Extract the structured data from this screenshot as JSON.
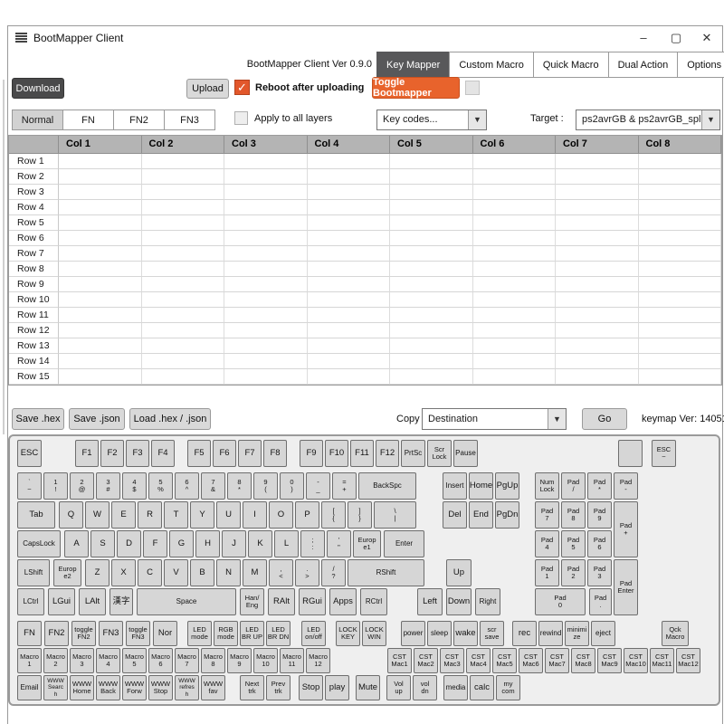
{
  "window": {
    "title": "BootMapper Client",
    "minimize": "–",
    "maximize": "▢",
    "close": "✕"
  },
  "header": {
    "version_text": "BootMapper Client Ver 0.9.0",
    "tabs": [
      {
        "label": "Key Mapper",
        "active": true
      },
      {
        "label": "Custom Macro",
        "active": false
      },
      {
        "label": "Quick Macro",
        "active": false
      },
      {
        "label": "Dual Action",
        "active": false
      },
      {
        "label": "Options",
        "active": false
      }
    ]
  },
  "toolbar": {
    "download": "Download",
    "upload": "Upload",
    "reboot_label": "Reboot after uploading",
    "reboot_checked": true,
    "check_glyph": "✓",
    "toggle_bootmapper": "Toggle Bootmapper"
  },
  "layers": {
    "tabs": [
      "Normal",
      "FN",
      "FN2",
      "FN3"
    ],
    "active": "Normal",
    "apply_all_label": "Apply to all layers",
    "apply_all_checked": false,
    "key_codes_value": "Key codes...",
    "target_label": "Target :",
    "target_value": "ps2avrGB & ps2avrGB_split",
    "dropdown_arrow": "▼"
  },
  "grid": {
    "columns": [
      "Col 1",
      "Col 2",
      "Col 3",
      "Col 4",
      "Col 5",
      "Col 6",
      "Col 7",
      "Col 8"
    ],
    "rows": [
      "Row 1",
      "Row 2",
      "Row 3",
      "Row 4",
      "Row 5",
      "Row 6",
      "Row 7",
      "Row 8",
      "Row 9",
      "Row 10",
      "Row 11",
      "Row 12",
      "Row 13",
      "Row 14",
      "Row 15"
    ]
  },
  "file_bar": {
    "save_hex": "Save .hex",
    "save_json": "Save .json",
    "load": "Load .hex / .json",
    "copy_label": "Copy :",
    "copy_value": "Destination",
    "go": "Go",
    "keymap_ver": "keymap Ver: 140513"
  },
  "colors": {
    "accent_orange": "#e8632c",
    "tab_active_bg": "#58585a",
    "button_dark_bg": "#4a4a4b",
    "key_bg": "#d6d6d6",
    "grid_header_bg": "#b4b4b4"
  },
  "keyboard": {
    "keys": [
      [
        "ESC",
        8,
        4,
        27,
        30
      ],
      [
        "F1",
        72,
        4,
        26,
        30
      ],
      [
        "F2",
        100,
        4,
        26,
        30
      ],
      [
        "F3",
        128,
        4,
        26,
        30
      ],
      [
        "F4",
        156,
        4,
        26,
        30
      ],
      [
        "F5",
        196,
        4,
        26,
        30
      ],
      [
        "F6",
        224,
        4,
        26,
        30
      ],
      [
        "F7",
        252,
        4,
        26,
        30
      ],
      [
        "F8",
        280,
        4,
        26,
        30
      ],
      [
        "F9",
        320,
        4,
        26,
        30
      ],
      [
        "F10",
        348,
        4,
        26,
        30
      ],
      [
        "F11",
        376,
        4,
        26,
        30
      ],
      [
        "F12",
        404,
        4,
        26,
        30
      ],
      [
        "PrtSc",
        432,
        4,
        27,
        30
      ],
      [
        "Scr\nLock",
        461,
        4,
        27,
        30
      ],
      [
        "Pause",
        490,
        4,
        27,
        30
      ],
      [
        "",
        672,
        4,
        27,
        30
      ],
      [
        "ESC\n~",
        709,
        4,
        27,
        30
      ],
      [
        "`\n~",
        8,
        40,
        27,
        30
      ],
      [
        "1\n!",
        37,
        40,
        27,
        30
      ],
      [
        "2\n@",
        66,
        40,
        27,
        30
      ],
      [
        "3\n#",
        95,
        40,
        27,
        30
      ],
      [
        "4\n$",
        124,
        40,
        27,
        30
      ],
      [
        "5\n%",
        153,
        40,
        27,
        30
      ],
      [
        "6\n^",
        182,
        40,
        27,
        30
      ],
      [
        "7\n&",
        211,
        40,
        27,
        30
      ],
      [
        "8\n*",
        240,
        40,
        27,
        30
      ],
      [
        "9\n(",
        269,
        40,
        27,
        30
      ],
      [
        "0\n)",
        298,
        40,
        27,
        30
      ],
      [
        "-\n_",
        327,
        40,
        27,
        30
      ],
      [
        "=\n+",
        356,
        40,
        27,
        30
      ],
      [
        "BackSpc",
        385,
        40,
        64,
        30
      ],
      [
        "Insert",
        478,
        40,
        27,
        30
      ],
      [
        "Home",
        507,
        40,
        27,
        30
      ],
      [
        "PgUp",
        536,
        40,
        27,
        30
      ],
      [
        "Num\nLock",
        580,
        40,
        27,
        30
      ],
      [
        "Pad\n/",
        609,
        40,
        27,
        30
      ],
      [
        "Pad\n*",
        638,
        40,
        27,
        30
      ],
      [
        "Pad\n-",
        667,
        40,
        27,
        30
      ],
      [
        "Tab",
        8,
        72,
        42,
        30
      ],
      [
        "Q",
        54,
        72,
        27,
        30
      ],
      [
        "W",
        83,
        72,
        27,
        30
      ],
      [
        "E",
        112,
        72,
        27,
        30
      ],
      [
        "R",
        141,
        72,
        27,
        30
      ],
      [
        "T",
        170,
        72,
        27,
        30
      ],
      [
        "Y",
        199,
        72,
        27,
        30
      ],
      [
        "U",
        228,
        72,
        27,
        30
      ],
      [
        "I",
        257,
        72,
        27,
        30
      ],
      [
        "O",
        286,
        72,
        27,
        30
      ],
      [
        "P",
        315,
        72,
        27,
        30
      ],
      [
        "[\n{",
        344,
        72,
        27,
        30
      ],
      [
        "]\n}",
        373,
        72,
        27,
        30
      ],
      [
        "\\\n|",
        402,
        72,
        47,
        30
      ],
      [
        "Del",
        478,
        72,
        27,
        30
      ],
      [
        "End",
        507,
        72,
        27,
        30
      ],
      [
        "PgDn",
        536,
        72,
        27,
        30
      ],
      [
        "Pad\n7",
        580,
        72,
        27,
        30
      ],
      [
        "Pad\n8",
        609,
        72,
        27,
        30
      ],
      [
        "Pad\n9",
        638,
        72,
        27,
        30
      ],
      [
        "Pad\n+",
        667,
        72,
        27,
        62
      ],
      [
        "CapsLock",
        8,
        104,
        48,
        30
      ],
      [
        "A",
        60,
        104,
        27,
        30
      ],
      [
        "S",
        89,
        104,
        27,
        30
      ],
      [
        "D",
        118,
        104,
        27,
        30
      ],
      [
        "F",
        147,
        104,
        27,
        30
      ],
      [
        "G",
        176,
        104,
        27,
        30
      ],
      [
        "H",
        205,
        104,
        27,
        30
      ],
      [
        "J",
        234,
        104,
        27,
        30
      ],
      [
        "K",
        263,
        104,
        27,
        30
      ],
      [
        "L",
        292,
        104,
        27,
        30
      ],
      [
        ";\n:",
        321,
        104,
        27,
        30
      ],
      [
        "'\n\"",
        350,
        104,
        27,
        30
      ],
      [
        "Europ\ne1",
        379,
        104,
        31,
        30
      ],
      [
        "Enter",
        413,
        104,
        45,
        30
      ],
      [
        "Pad\n4",
        580,
        104,
        27,
        30
      ],
      [
        "Pad\n5",
        609,
        104,
        27,
        30
      ],
      [
        "Pad\n6",
        638,
        104,
        27,
        30
      ],
      [
        "LShift",
        8,
        136,
        36,
        30
      ],
      [
        "Europ\ne2",
        48,
        136,
        31,
        30
      ],
      [
        "Z",
        83,
        136,
        27,
        30
      ],
      [
        "X",
        112,
        136,
        27,
        30
      ],
      [
        "C",
        141,
        136,
        27,
        30
      ],
      [
        "V",
        170,
        136,
        27,
        30
      ],
      [
        "B",
        199,
        136,
        27,
        30
      ],
      [
        "N",
        228,
        136,
        27,
        30
      ],
      [
        "M",
        257,
        136,
        27,
        30
      ],
      [
        ",\n<",
        286,
        136,
        27,
        30
      ],
      [
        ".\n>",
        315,
        136,
        27,
        30
      ],
      [
        "/\n?",
        344,
        136,
        27,
        30
      ],
      [
        "RShift",
        373,
        136,
        85,
        30
      ],
      [
        "Up",
        482,
        136,
        28,
        30
      ],
      [
        "Pad\n1",
        580,
        136,
        27,
        30
      ],
      [
        "Pad\n2",
        609,
        136,
        27,
        30
      ],
      [
        "Pad\n3",
        638,
        136,
        27,
        30
      ],
      [
        "Pad\nEnter",
        667,
        136,
        27,
        62
      ],
      [
        "LCtrl",
        8,
        168,
        30,
        30
      ],
      [
        "LGui",
        42,
        168,
        30,
        30
      ],
      [
        "LAlt",
        76,
        168,
        30,
        30
      ],
      [
        "漢字",
        110,
        168,
        26,
        30
      ],
      [
        "Space",
        140,
        168,
        110,
        30
      ],
      [
        "Han/\nEng",
        254,
        168,
        27,
        30
      ],
      [
        "RAlt",
        285,
        168,
        30,
        30
      ],
      [
        "RGui",
        319,
        168,
        30,
        30
      ],
      [
        "Apps",
        353,
        168,
        30,
        30
      ],
      [
        "RCtrl",
        387,
        168,
        30,
        30
      ],
      [
        "Left",
        450,
        168,
        28,
        30
      ],
      [
        "Down",
        482,
        168,
        28,
        30
      ],
      [
        "Right",
        514,
        168,
        28,
        30
      ],
      [
        "Pad\n0",
        580,
        168,
        56,
        30
      ],
      [
        "Pad\n.",
        640,
        168,
        25,
        30
      ],
      [
        "FN",
        8,
        204,
        27,
        28
      ],
      [
        "FN2",
        38,
        204,
        27,
        28
      ],
      [
        "toggle\nFN2",
        68,
        204,
        27,
        28
      ],
      [
        "FN3",
        98,
        204,
        27,
        28
      ],
      [
        "toggle\nFN3",
        128,
        204,
        27,
        28
      ],
      [
        "Nor",
        158,
        204,
        27,
        28
      ],
      [
        "LED\nmode",
        196,
        204,
        27,
        28
      ],
      [
        "RGB\nmode",
        225,
        204,
        27,
        28
      ],
      [
        "LED\nBR UP",
        254,
        204,
        27,
        28
      ],
      [
        "LED\nBR DN",
        283,
        204,
        27,
        28
      ],
      [
        "LED\non/off",
        322,
        204,
        27,
        28
      ],
      [
        "LOCK\nKEY",
        360,
        204,
        27,
        28
      ],
      [
        "LOCK\nWIN",
        389,
        204,
        27,
        28
      ],
      [
        "power",
        432,
        204,
        27,
        28
      ],
      [
        "sleep",
        461,
        204,
        27,
        28
      ],
      [
        "wake",
        490,
        204,
        27,
        28
      ],
      [
        "scr\nsave",
        519,
        204,
        27,
        28
      ],
      [
        "rec",
        555,
        204,
        27,
        28
      ],
      [
        "rewind",
        584,
        204,
        27,
        28
      ],
      [
        "minimi\nze",
        613,
        204,
        27,
        28
      ],
      [
        "eject",
        642,
        204,
        27,
        28
      ],
      [
        "Qck\nMacro",
        720,
        204,
        30,
        28
      ],
      [
        "Macro\n1",
        8,
        234,
        27,
        28
      ],
      [
        "Macro\n2",
        37,
        234,
        27,
        28
      ],
      [
        "Macro\n3",
        66,
        234,
        27,
        28
      ],
      [
        "Macro\n4",
        95,
        234,
        27,
        28
      ],
      [
        "Macro\n5",
        124,
        234,
        27,
        28
      ],
      [
        "Macro\n6",
        153,
        234,
        27,
        28
      ],
      [
        "Macro\n7",
        182,
        234,
        27,
        28
      ],
      [
        "Macro\n8",
        211,
        234,
        27,
        28
      ],
      [
        "Macro\n9",
        240,
        234,
        27,
        28
      ],
      [
        "Macro\n10",
        269,
        234,
        27,
        28
      ],
      [
        "Macro\n11",
        298,
        234,
        27,
        28
      ],
      [
        "Macro\n12",
        327,
        234,
        27,
        28
      ],
      [
        "CST\nMac1",
        417,
        234,
        27,
        28
      ],
      [
        "CST\nMac2",
        446,
        234,
        27,
        28
      ],
      [
        "CST\nMac3",
        475,
        234,
        27,
        28
      ],
      [
        "CST\nMac4",
        504,
        234,
        27,
        28
      ],
      [
        "CST\nMac5",
        533,
        234,
        27,
        28
      ],
      [
        "CST\nMac6",
        562,
        234,
        27,
        28
      ],
      [
        "CST\nMac7",
        591,
        234,
        27,
        28
      ],
      [
        "CST\nMac8",
        620,
        234,
        27,
        28
      ],
      [
        "CST\nMac9",
        649,
        234,
        27,
        28
      ],
      [
        "CST\nMac10",
        678,
        234,
        27,
        28
      ],
      [
        "CST\nMac11",
        707,
        234,
        27,
        28
      ],
      [
        "CST\nMac12",
        736,
        234,
        27,
        28
      ],
      [
        "Email",
        8,
        264,
        27,
        28
      ],
      [
        "WWW\nSearc\nh",
        37,
        264,
        27,
        28
      ],
      [
        "WWW\nHome",
        66,
        264,
        27,
        28
      ],
      [
        "WWW\nBack",
        95,
        264,
        27,
        28
      ],
      [
        "WWW\nForw",
        124,
        264,
        27,
        28
      ],
      [
        "WWW\nStop",
        153,
        264,
        27,
        28
      ],
      [
        "WWW\nrefres\nh",
        182,
        264,
        27,
        28
      ],
      [
        "WWW\nfav",
        211,
        264,
        27,
        28
      ],
      [
        "Next\ntrk",
        254,
        264,
        27,
        28
      ],
      [
        "Prev\ntrk",
        283,
        264,
        27,
        28
      ],
      [
        "Stop",
        319,
        264,
        27,
        28
      ],
      [
        "play",
        348,
        264,
        27,
        28
      ],
      [
        "Mute",
        382,
        264,
        27,
        28
      ],
      [
        "Vol\nup",
        416,
        264,
        27,
        28
      ],
      [
        "vol\ndn",
        445,
        264,
        27,
        28
      ],
      [
        "media",
        479,
        264,
        27,
        28
      ],
      [
        "calc",
        508,
        264,
        27,
        28
      ],
      [
        "my\ncom",
        537,
        264,
        27,
        28
      ]
    ]
  }
}
